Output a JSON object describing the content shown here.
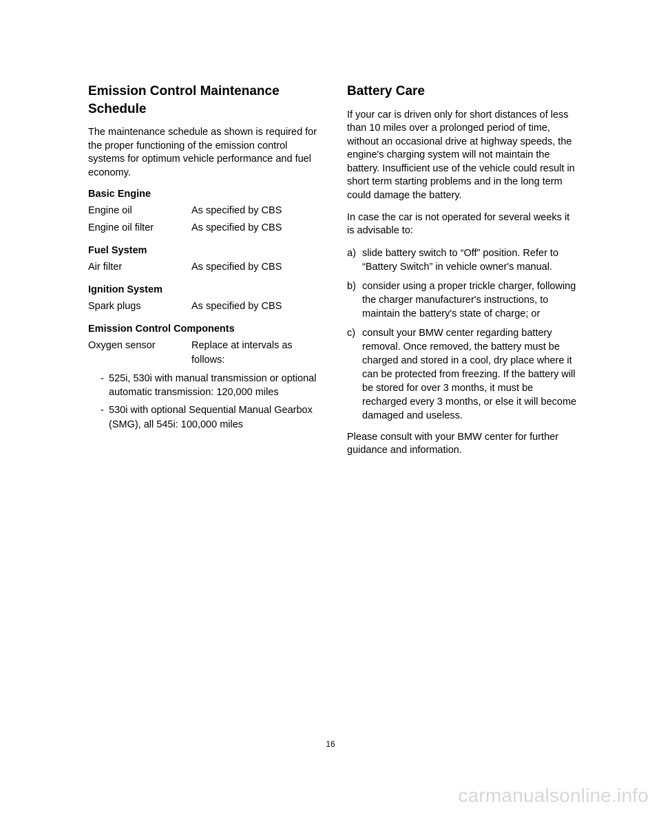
{
  "left": {
    "title": "Emission Control Maintenance Schedule",
    "intro": "The maintenance schedule as shown is required for the proper functioning of the emission control systems for optimum vehicle performance and fuel economy.",
    "sections": [
      {
        "heading": "Basic Engine",
        "rows": [
          {
            "label": "Engine oil",
            "value": "As specified by CBS"
          },
          {
            "label": "Engine oil filter",
            "value": "As specified by CBS"
          }
        ]
      },
      {
        "heading": "Fuel System",
        "rows": [
          {
            "label": "Air filter",
            "value": "As specified by CBS"
          }
        ]
      },
      {
        "heading": "Ignition System",
        "rows": [
          {
            "label": "Spark plugs",
            "value": "As specified by CBS"
          }
        ]
      },
      {
        "heading": "Emission Control Components",
        "rows": [
          {
            "label": "Oxygen sensor",
            "value": "Replace at intervals as follows:"
          }
        ],
        "sublist": [
          "525i, 530i with manual transmission or optional automatic transmission: 120,000 miles",
          "530i with optional Sequential Manual Gearbox (SMG), all 545i: 100,000 miles"
        ]
      }
    ]
  },
  "right": {
    "title": "Battery Care",
    "p1": "If your car is driven only for short distances of less than 10 miles over a prolonged period of time, without an occasional drive at highway speeds, the engine's charging system will not maintain the battery.  Insufficient use of the vehicle could result in short term starting problems and in the long term could damage the battery.",
    "p2": "In case the car is not operated for several weeks it is advisable to:",
    "list": [
      {
        "marker": "a)",
        "text": "slide battery switch to “Off” position. Refer to “Battery Switch” in vehicle owner's manual."
      },
      {
        "marker": "b)",
        "text": "consider using a proper trickle charger, following the charger manufacturer's instructions, to maintain the battery's state of charge; or"
      },
      {
        "marker": "c)",
        "text": "consult your BMW center regarding battery removal.  Once removed, the battery must be charged and stored in a cool, dry place where it can be protected from freezing.  If the battery will be stored for over 3 months, it must be recharged every 3 months, or else it will become damaged and useless."
      }
    ],
    "p3": "Please consult with your BMW center for further guidance and information."
  },
  "pageNumber": "16",
  "watermark": "carmanualsonline.info"
}
